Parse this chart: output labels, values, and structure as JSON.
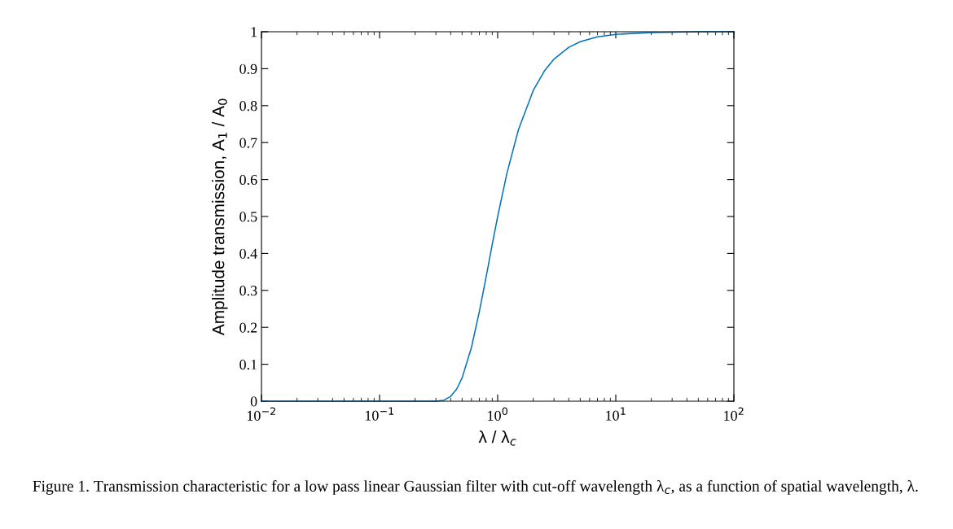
{
  "chart_data": {
    "type": "line",
    "xlabel": "λ / λ$_{c}$",
    "ylabel": "Amplitude transmission, A$_{1}$ / A$_{0}$",
    "annotations": [
      "Figure 1. Transmission characteristic for a low pass linear Gaussian filter with cut-off wavelength λ$_{c}$, as a function of spatial wavelength, λ."
    ],
    "log": "x",
    "x": [
      0.01,
      0.1,
      0.3,
      0.35,
      0.4,
      0.45,
      0.5,
      0.6,
      0.7,
      0.8,
      0.9,
      1,
      1.2,
      1.5,
      2,
      2.5,
      3,
      4,
      5,
      7,
      10,
      20,
      50,
      100
    ],
    "series": [
      {
        "color": "#0072bd",
        "values": [
          0,
          0,
          0,
          0.003,
          0.013,
          0.033,
          0.063,
          0.146,
          0.243,
          0.338,
          0.425,
          0.5,
          0.618,
          0.735,
          0.841,
          0.895,
          0.926,
          0.958,
          0.973,
          0.986,
          0.993,
          0.998,
          1,
          1
        ]
      }
    ],
    "xlim": [
      0.01,
      100
    ],
    "xticks": [
      {
        "value": 0.01,
        "label": "10$^{−2}$"
      },
      {
        "value": 0.1,
        "label": "10$^{−1}$"
      },
      {
        "value": 1,
        "label": "10$^{0}$"
      },
      {
        "value": 10,
        "label": "10$^{1}$"
      },
      {
        "value": 100,
        "label": "10$^{2}$"
      }
    ],
    "ylim": [
      0,
      1
    ],
    "yticks": [
      0,
      0.1,
      0.2,
      0.3,
      0.4,
      0.5,
      0.6,
      0.7,
      0.8,
      0.9,
      1
    ],
    "grid": false,
    "legend": false,
    "marker": "none",
    "line_style": "solid"
  }
}
